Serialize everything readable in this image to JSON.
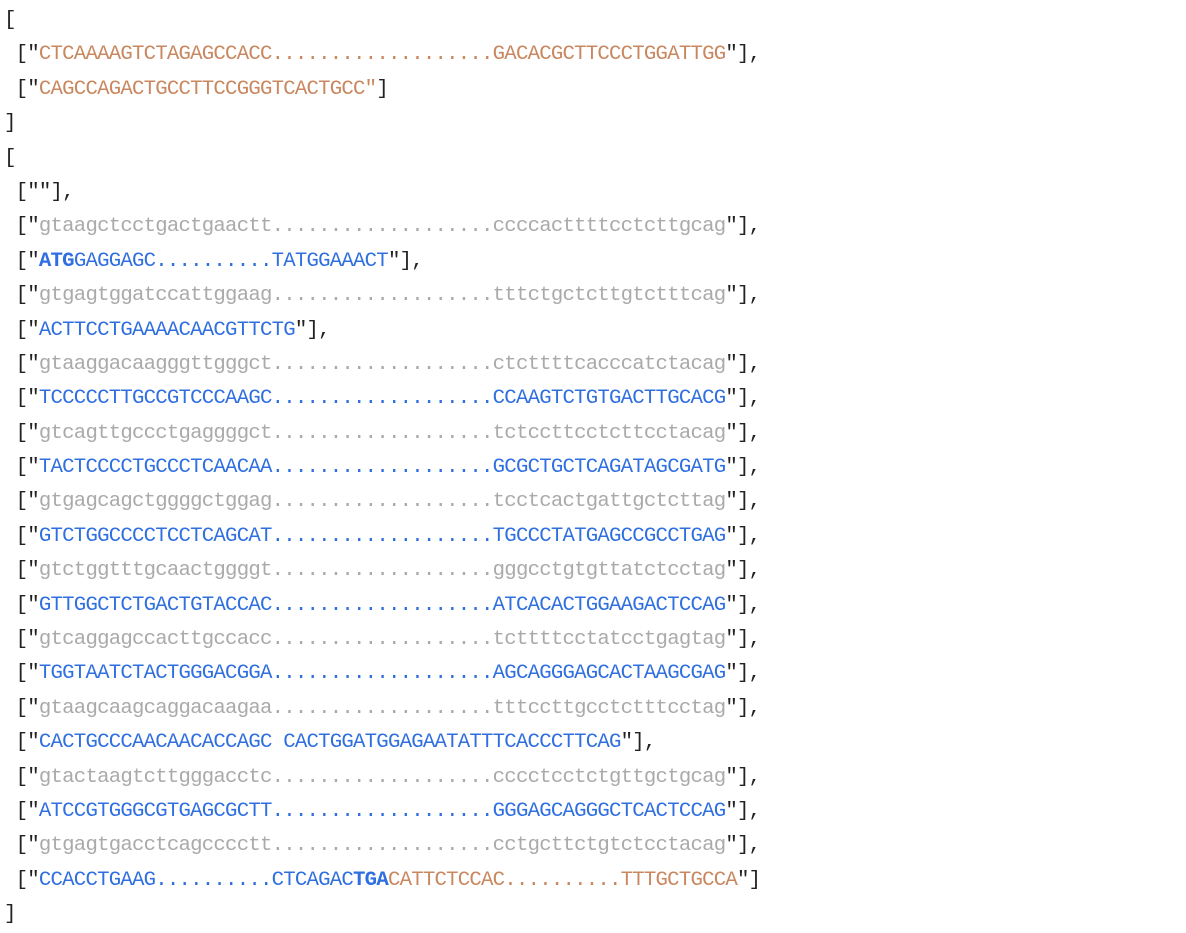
{
  "lines": [
    [
      {
        "t": "[",
        "c": "black"
      }
    ],
    [
      {
        "t": " [\"",
        "c": "black"
      },
      {
        "t": "CTCAAAAGTCTAGAGCCACC",
        "c": "orange"
      },
      {
        "t": "...................",
        "c": "orange"
      },
      {
        "t": "GACACGCTTCCCTGGATTGG",
        "c": "orange"
      },
      {
        "t": "\"],",
        "c": "black"
      }
    ],
    [
      {
        "t": " [\"",
        "c": "black"
      },
      {
        "t": "CAGCCAGACTGCCTTCCGGGTCACTGCC\"",
        "c": "orange"
      },
      {
        "t": "]",
        "c": "black"
      }
    ],
    [
      {
        "t": "]",
        "c": "black"
      }
    ],
    [
      {
        "t": "[",
        "c": "black"
      }
    ],
    [
      {
        "t": " [\"\"],",
        "c": "black"
      }
    ],
    [
      {
        "t": " [\"",
        "c": "black"
      },
      {
        "t": "gtaagctcctgactgaactt",
        "c": "grey"
      },
      {
        "t": "...................",
        "c": "grey"
      },
      {
        "t": "ccccacttttcctcttgcag",
        "c": "grey"
      },
      {
        "t": "\"],",
        "c": "black"
      }
    ],
    [
      {
        "t": " [\"",
        "c": "black"
      },
      {
        "t": "ATG",
        "c": "blue",
        "b": true
      },
      {
        "t": "GAGGAGC..........TATGGAAACT",
        "c": "blue"
      },
      {
        "t": "\"],",
        "c": "black"
      }
    ],
    [
      {
        "t": " [\"",
        "c": "black"
      },
      {
        "t": "gtgagtggatccattggaag",
        "c": "grey"
      },
      {
        "t": "...................",
        "c": "grey"
      },
      {
        "t": "tttctgctcttgtctttcag",
        "c": "grey"
      },
      {
        "t": "\"],",
        "c": "black"
      }
    ],
    [
      {
        "t": " [\"",
        "c": "black"
      },
      {
        "t": "ACTTCCTGAAAACAACGTTCTG",
        "c": "blue"
      },
      {
        "t": "\"],",
        "c": "black"
      }
    ],
    [
      {
        "t": " [\"",
        "c": "black"
      },
      {
        "t": "gtaaggacaagggttgggct",
        "c": "grey"
      },
      {
        "t": "...................",
        "c": "grey"
      },
      {
        "t": "ctcttttcacccatctacag",
        "c": "grey"
      },
      {
        "t": "\"],",
        "c": "black"
      }
    ],
    [
      {
        "t": " [\"",
        "c": "black"
      },
      {
        "t": "TCCCCCTTGCCGTCCCAAGC",
        "c": "blue"
      },
      {
        "t": "...................",
        "c": "blue"
      },
      {
        "t": "CCAAGTCTGTGACTTGCACG",
        "c": "blue"
      },
      {
        "t": "\"],",
        "c": "black"
      }
    ],
    [
      {
        "t": " [\"",
        "c": "black"
      },
      {
        "t": "gtcagttgccctgaggggct",
        "c": "grey"
      },
      {
        "t": "...................",
        "c": "grey"
      },
      {
        "t": "tctccttcctcttcctacag",
        "c": "grey"
      },
      {
        "t": "\"],",
        "c": "black"
      }
    ],
    [
      {
        "t": " [\"",
        "c": "black"
      },
      {
        "t": "TACTCCCCTGCCCTCAACAA",
        "c": "blue"
      },
      {
        "t": "...................",
        "c": "blue"
      },
      {
        "t": "GCGCTGCTCAGATAGCGATG",
        "c": "blue"
      },
      {
        "t": "\"],",
        "c": "black"
      }
    ],
    [
      {
        "t": " [\"",
        "c": "black"
      },
      {
        "t": "gtgagcagctggggctggag",
        "c": "grey"
      },
      {
        "t": "...................",
        "c": "grey"
      },
      {
        "t": "tcctcactgattgctcttag",
        "c": "grey"
      },
      {
        "t": "\"],",
        "c": "black"
      }
    ],
    [
      {
        "t": " [\"",
        "c": "black"
      },
      {
        "t": "GTCTGGCCCCTCCTCAGCAT",
        "c": "blue"
      },
      {
        "t": "...................",
        "c": "blue"
      },
      {
        "t": "TGCCCTATGAGCCGCCTGAG",
        "c": "blue"
      },
      {
        "t": "\"],",
        "c": "black"
      }
    ],
    [
      {
        "t": " [\"",
        "c": "black"
      },
      {
        "t": "gtctggtttgcaactggggt",
        "c": "grey"
      },
      {
        "t": "...................",
        "c": "grey"
      },
      {
        "t": "gggcctgtgttatctcctag",
        "c": "grey"
      },
      {
        "t": "\"],",
        "c": "black"
      }
    ],
    [
      {
        "t": " [\"",
        "c": "black"
      },
      {
        "t": "GTTGGCTCTGACTGTACCAC",
        "c": "blue"
      },
      {
        "t": "...................",
        "c": "blue"
      },
      {
        "t": "ATCACACTGGAAGACTCCAG",
        "c": "blue"
      },
      {
        "t": "\"],",
        "c": "black"
      }
    ],
    [
      {
        "t": " [\"",
        "c": "black"
      },
      {
        "t": "gtcaggagccacttgccacc",
        "c": "grey"
      },
      {
        "t": "...................",
        "c": "grey"
      },
      {
        "t": "tcttttcctatcctgagtag",
        "c": "grey"
      },
      {
        "t": "\"],",
        "c": "black"
      }
    ],
    [
      {
        "t": " [\"",
        "c": "black"
      },
      {
        "t": "TGGTAATCTACTGGGACGGA",
        "c": "blue"
      },
      {
        "t": "...................",
        "c": "blue"
      },
      {
        "t": "AGCAGGGAGCACTAAGCGAG",
        "c": "blue"
      },
      {
        "t": "\"],",
        "c": "black"
      }
    ],
    [
      {
        "t": " [\"",
        "c": "black"
      },
      {
        "t": "gtaagcaagcaggacaagaa",
        "c": "grey"
      },
      {
        "t": "...................",
        "c": "grey"
      },
      {
        "t": "tttccttgcctctttcctag",
        "c": "grey"
      },
      {
        "t": "\"],",
        "c": "black"
      }
    ],
    [
      {
        "t": " [\"",
        "c": "black"
      },
      {
        "t": "CACTGCCCAACAACACCAGC CACTGGATGGAGAATATTTCACCCTTCAG",
        "c": "blue"
      },
      {
        "t": "\"],",
        "c": "black"
      }
    ],
    [
      {
        "t": " [\"",
        "c": "black"
      },
      {
        "t": "gtactaagtcttgggacctc",
        "c": "grey"
      },
      {
        "t": "...................",
        "c": "grey"
      },
      {
        "t": "cccctcctctgttgctgcag",
        "c": "grey"
      },
      {
        "t": "\"],",
        "c": "black"
      }
    ],
    [
      {
        "t": " [\"",
        "c": "black"
      },
      {
        "t": "ATCCGTGGGCGTGAGCGCTT",
        "c": "blue"
      },
      {
        "t": "...................",
        "c": "blue"
      },
      {
        "t": "GGGAGCAGGGCTCACTCCAG",
        "c": "blue"
      },
      {
        "t": "\"],",
        "c": "black"
      }
    ],
    [
      {
        "t": " [\"",
        "c": "black"
      },
      {
        "t": "gtgagtgacctcagcccctt",
        "c": "grey"
      },
      {
        "t": "...................",
        "c": "grey"
      },
      {
        "t": "cctgcttctgtctcctacag",
        "c": "grey"
      },
      {
        "t": "\"],",
        "c": "black"
      }
    ],
    [
      {
        "t": " [\"",
        "c": "black"
      },
      {
        "t": "CCACCTGAAG..........CTCAGAC",
        "c": "blue"
      },
      {
        "t": "TGA",
        "c": "blue",
        "b": true
      },
      {
        "t": "CATTCTCCAC..........TTTGCTGCCA",
        "c": "orange"
      },
      {
        "t": "\"]",
        "c": "black"
      }
    ],
    [
      {
        "t": "]",
        "c": "black"
      }
    ]
  ],
  "colors": {
    "bracket": "#222222",
    "utr": "#c9875f",
    "exon": "#2f6fe0",
    "intron": "#aaaaaa"
  }
}
